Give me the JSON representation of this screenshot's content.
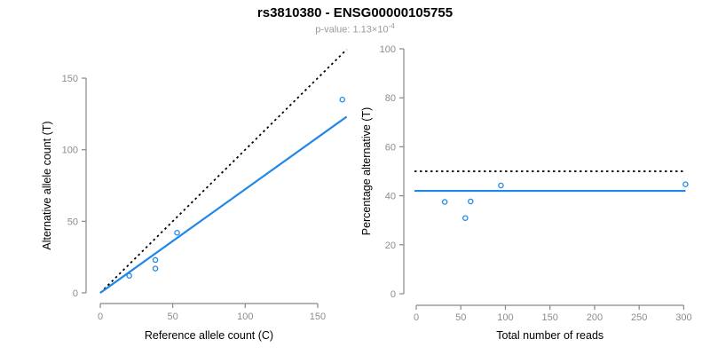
{
  "header": {
    "title": "rs3810380 - ENSG00000105755",
    "subtitle_text": "p-value: 1.13×10",
    "subtitle_exponent": "-4"
  },
  "colors": {
    "accent_blue": "#1E87E8",
    "axis_line": "#888888",
    "tick_label": "#8c8c8c",
    "axis_title": "#000000",
    "dotted_line": "#000000",
    "subtitle_gray": "#9a9a9a"
  },
  "chart_data": [
    {
      "type": "scatter",
      "xlabel": "Reference allele count (C)",
      "ylabel": "Alternative allele count (T)",
      "xlim": [
        0,
        170
      ],
      "ylim": [
        0,
        170
      ],
      "grid": false,
      "xticks": [
        0,
        50,
        100,
        150
      ],
      "yticks": [
        0,
        50,
        100,
        150
      ],
      "points": [
        [
          20,
          12
        ],
        [
          38,
          17
        ],
        [
          38,
          23
        ],
        [
          53,
          42
        ],
        [
          167,
          135
        ]
      ],
      "lines": [
        {
          "name": "identity-line",
          "kind": "abline",
          "slope": 1,
          "intercept": 0,
          "style": "dotted",
          "color": "#000000",
          "x_range": [
            0,
            170
          ]
        },
        {
          "name": "fit-line",
          "kind": "abline",
          "slope": 0.724,
          "intercept": 0,
          "style": "solid",
          "color": "#1E87E8",
          "x_range": [
            0,
            170
          ]
        }
      ]
    },
    {
      "type": "scatter",
      "xlabel": "Total number of reads",
      "ylabel": "Percentage alternative (T)",
      "xlim": [
        0,
        305
      ],
      "ylim": [
        0,
        100
      ],
      "grid": false,
      "xticks": [
        0,
        50,
        100,
        150,
        200,
        250,
        300
      ],
      "yticks": [
        0,
        20,
        40,
        60,
        80,
        100
      ],
      "points": [
        [
          32,
          37.5
        ],
        [
          55,
          30.9
        ],
        [
          61,
          37.7
        ],
        [
          95,
          44.2
        ],
        [
          302,
          44.7
        ]
      ],
      "lines": [
        {
          "name": "expected-50pct-line",
          "kind": "hline",
          "y": 50,
          "style": "dotted",
          "color": "#000000",
          "x_range": [
            -2,
            302
          ]
        },
        {
          "name": "mean-alternative-line",
          "kind": "hline",
          "y": 42,
          "style": "solid",
          "color": "#1E87E8",
          "x_range": [
            -2,
            302
          ]
        }
      ]
    }
  ]
}
